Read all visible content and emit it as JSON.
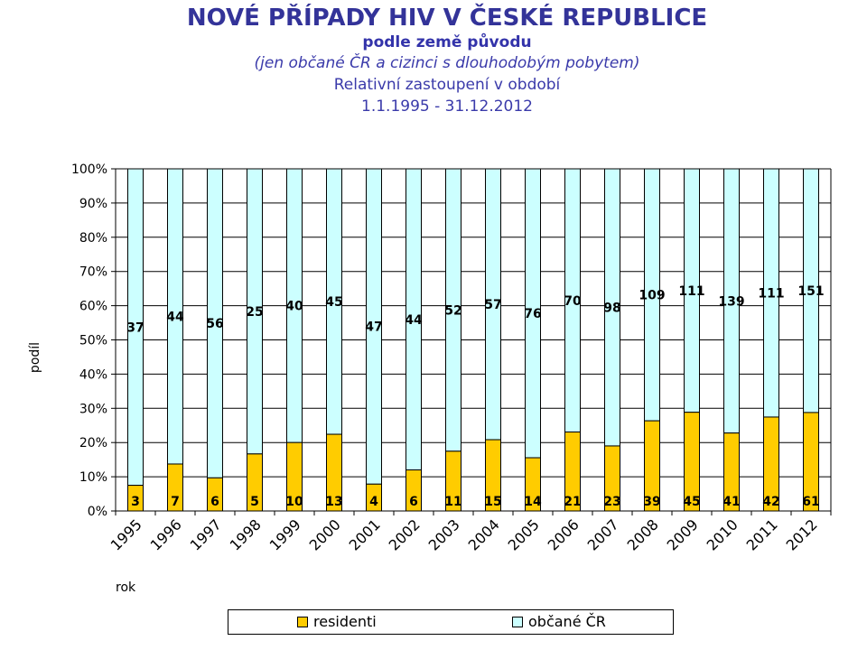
{
  "header": {
    "title": "NOVÉ PŘÍPADY HIV V ČESKÉ REPUBLICE",
    "subtitle": "podle země původu",
    "note": "(jen občané ČR a cizinci s dlouhodobým pobytem)",
    "line3": "Relativní zastoupení v období",
    "period": "1.1.1995 - 31.12.2012"
  },
  "colors": {
    "residents": "#ffcc00",
    "citizens": "#ccffff"
  },
  "chart_data": {
    "type": "bar",
    "stacked": "percent",
    "ylabel": "podíl",
    "xlabel": "rok",
    "ylim": [
      0,
      100
    ],
    "yticks": [
      "0%",
      "10%",
      "20%",
      "30%",
      "40%",
      "50%",
      "60%",
      "70%",
      "80%",
      "90%",
      "100%"
    ],
    "categories": [
      "1995",
      "1996",
      "1997",
      "1998",
      "1999",
      "2000",
      "2001",
      "2002",
      "2003",
      "2004",
      "2005",
      "2006",
      "2007",
      "2008",
      "2009",
      "2010",
      "2011",
      "2012"
    ],
    "series": [
      {
        "name": "residenti",
        "values": [
          3,
          7,
          6,
          5,
          10,
          13,
          4,
          6,
          11,
          15,
          14,
          21,
          23,
          39,
          45,
          41,
          42,
          61
        ]
      },
      {
        "name": "občané ČR",
        "values": [
          37,
          44,
          56,
          25,
          40,
          45,
          47,
          44,
          52,
          57,
          76,
          70,
          98,
          109,
          111,
          139,
          111,
          151
        ]
      }
    ],
    "legend": {
      "position": "bottom",
      "items": [
        "residenti",
        "občané ČR"
      ]
    }
  }
}
